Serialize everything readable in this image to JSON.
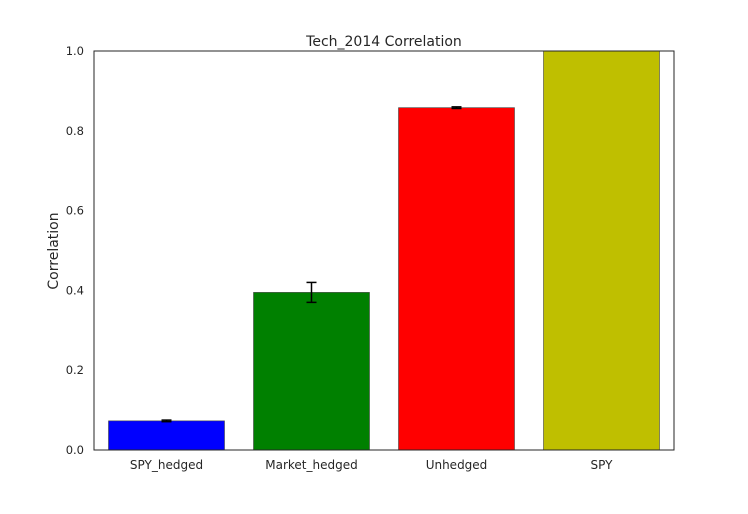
{
  "chart_data": {
    "type": "bar",
    "title": "Tech_2014 Correlation",
    "xlabel": "",
    "ylabel": "Correlation",
    "categories": [
      "SPY_hedged",
      "Market_hedged",
      "Unhedged",
      "SPY"
    ],
    "values": [
      0.073,
      0.395,
      0.858,
      1.0
    ],
    "errors": [
      0.002,
      0.025,
      0.002,
      0.0
    ],
    "colors": [
      "#0000ff",
      "#008000",
      "#ff0000",
      "#bfbf00"
    ],
    "ylim": [
      0,
      1.0
    ],
    "yticks": [
      "0.0",
      "0.2",
      "0.4",
      "0.6",
      "0.8",
      "1.0"
    ],
    "grid": false,
    "legend": "none"
  }
}
